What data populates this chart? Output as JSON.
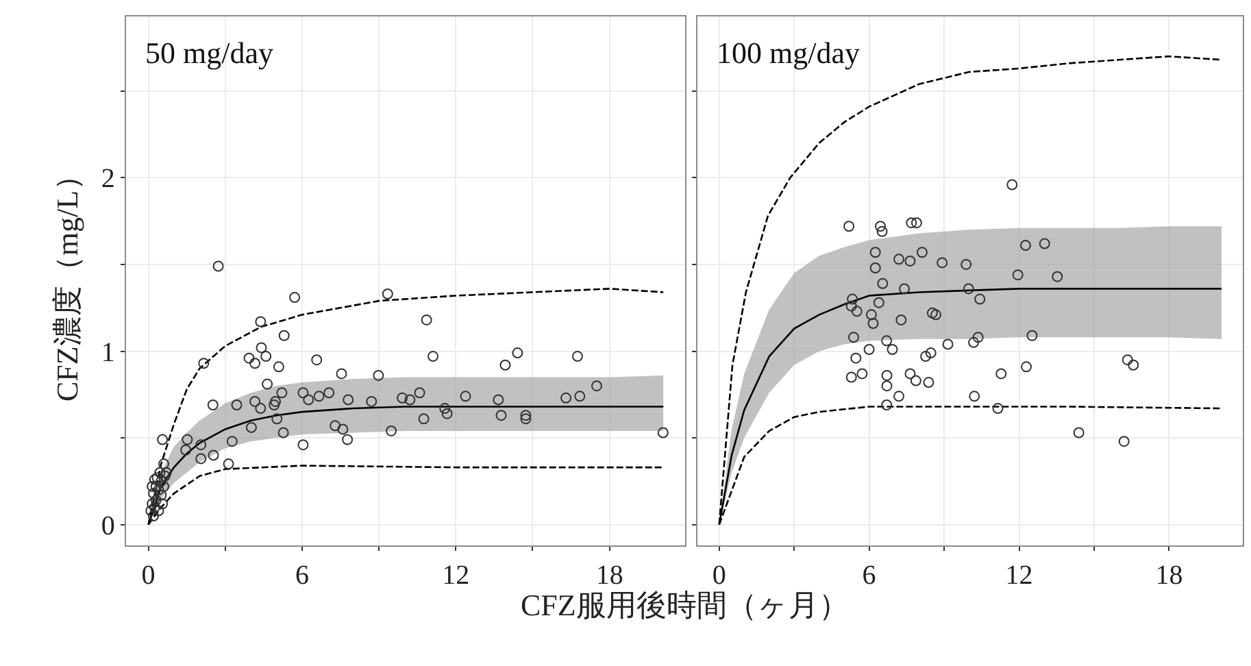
{
  "chart_data": [
    {
      "type": "scatter",
      "ylabel": "CFZ濃度（mg/L）",
      "xlabel": "CFZ服用後時間（ヶ月）",
      "annotations": [
        "50 mg/day"
      ],
      "xlim": [
        -0.87,
        20.95
      ],
      "xticks": [
        0,
        {
          "value": 3,
          "label": null
        },
        6,
        {
          "value": 9,
          "label": null
        },
        12,
        {
          "value": 15,
          "label": null
        },
        18
      ],
      "ylim": [
        -0.12,
        2.93
      ],
      "yticks": [
        0,
        {
          "value": 0.5,
          "label": null
        },
        1,
        {
          "value": 1.5,
          "label": null
        },
        2,
        {
          "value": 2.5,
          "label": null
        }
      ],
      "grid": true,
      "series": [
        {
          "type": "line",
          "color": "#000000",
          "line_style": "solid",
          "x": [
            0,
            0.5,
            1,
            1.5,
            2,
            3,
            4,
            5,
            6,
            8,
            10,
            12,
            14,
            16,
            18,
            20.1
          ],
          "values": [
            0,
            0.22,
            0.33,
            0.41,
            0.47,
            0.55,
            0.6,
            0.63,
            0.65,
            0.67,
            0.68,
            0.68,
            0.68,
            0.68,
            0.68,
            0.68
          ],
          "lower": [
            0,
            0.15,
            0.24,
            0.3,
            0.36,
            0.44,
            0.48,
            0.5,
            0.52,
            0.53,
            0.54,
            0.54,
            0.54,
            0.54,
            0.54,
            0.54
          ],
          "upper": [
            0,
            0.3,
            0.45,
            0.53,
            0.6,
            0.7,
            0.76,
            0.8,
            0.82,
            0.84,
            0.85,
            0.85,
            0.85,
            0.85,
            0.85,
            0.86
          ]
        },
        {
          "type": "line",
          "color": "#000000",
          "line_style": "dashed",
          "x": [
            0,
            0.5,
            1,
            1.5,
            2,
            3,
            4.4,
            6,
            9,
            12,
            15,
            18,
            20.1
          ],
          "values": [
            0,
            0.35,
            0.58,
            0.78,
            0.9,
            1.03,
            1.14,
            1.21,
            1.29,
            1.32,
            1.34,
            1.36,
            1.34
          ]
        },
        {
          "type": "line",
          "color": "#000000",
          "line_style": "dashed",
          "x": [
            0,
            0.5,
            1,
            2,
            3,
            6,
            12,
            20.1
          ],
          "values": [
            0,
            0.1,
            0.18,
            0.28,
            0.32,
            0.34,
            0.33,
            0.33
          ]
        },
        {
          "color": "#333333",
          "marker": "circle",
          "x": [
            2.73,
            5.71,
            9.34,
            4.38,
            10.86,
            5.3,
            2.16,
            3.93,
            4.16,
            4.41,
            4.59,
            5.09,
            6.57,
            11.11,
            13.93,
            14.41,
            16.75,
            7.54,
            8.98,
            4.64,
            17.5,
            2.52,
            3.45,
            4.16,
            4.38,
            4.91,
            4.96,
            5.21,
            6.04,
            6.25,
            6.66,
            7.05,
            7.8,
            8.71,
            9.91,
            10.21,
            10.59,
            12.38,
            13.66,
            16.3,
            16.84,
            11.57,
            11.66,
            13.77,
            14.73,
            14.73,
            10.75,
            5.02,
            4.02,
            5.27,
            7.29,
            7.59,
            7.77,
            9.48,
            20.09,
            6.04,
            3.27,
            1.52,
            1.46,
            2.05,
            2.05,
            2.54,
            3.13,
            0.55,
            0.1,
            0.15,
            0.2,
            0.2,
            0.25,
            0.3,
            0.3,
            0.35,
            0.4,
            0.4,
            0.45,
            0.5,
            0.5,
            0.55,
            0.6,
            0.6,
            0.65,
            0.7,
            0.15,
            0.25
          ],
          "values": [
            1.49,
            1.31,
            1.33,
            1.17,
            1.18,
            1.09,
            0.93,
            0.96,
            0.93,
            1.02,
            0.97,
            0.91,
            0.95,
            0.97,
            0.92,
            0.99,
            0.97,
            0.87,
            0.86,
            0.81,
            0.8,
            0.69,
            0.69,
            0.71,
            0.67,
            0.69,
            0.71,
            0.76,
            0.76,
            0.72,
            0.74,
            0.76,
            0.72,
            0.71,
            0.73,
            0.72,
            0.76,
            0.74,
            0.72,
            0.73,
            0.74,
            0.67,
            0.64,
            0.63,
            0.63,
            0.61,
            0.61,
            0.61,
            0.56,
            0.53,
            0.57,
            0.55,
            0.49,
            0.54,
            0.53,
            0.46,
            0.48,
            0.49,
            0.43,
            0.46,
            0.38,
            0.4,
            0.35,
            0.49,
            0.08,
            0.12,
            0.05,
            0.18,
            0.1,
            0.22,
            0.14,
            0.27,
            0.08,
            0.2,
            0.3,
            0.17,
            0.25,
            0.12,
            0.35,
            0.22,
            0.28,
            0.3,
            0.22,
            0.26
          ]
        }
      ]
    },
    {
      "type": "scatter",
      "annotations": [
        "100 mg/day"
      ],
      "tick_labels": "x",
      "xlim": [
        -0.87,
        20.95
      ],
      "xticks": [
        0,
        {
          "value": 3,
          "label": null
        },
        6,
        {
          "value": 9,
          "label": null
        },
        12,
        {
          "value": 15,
          "label": null
        },
        18
      ],
      "ylim": [
        -0.12,
        2.93
      ],
      "yticks": [
        0,
        {
          "value": 0.5,
          "label": null
        },
        1,
        {
          "value": 1.5,
          "label": null
        },
        2,
        {
          "value": 2.5,
          "label": null
        }
      ],
      "grid": true,
      "series": [
        {
          "type": "line",
          "color": "#000000",
          "line_style": "solid",
          "x": [
            0,
            0.5,
            1,
            2,
            3,
            4,
            5,
            6,
            8,
            10,
            12,
            14,
            16,
            18,
            20.1
          ],
          "values": [
            0,
            0.4,
            0.66,
            0.97,
            1.13,
            1.21,
            1.27,
            1.32,
            1.34,
            1.35,
            1.36,
            1.36,
            1.36,
            1.36,
            1.36
          ],
          "lower": [
            0,
            0.3,
            0.5,
            0.76,
            0.92,
            1.0,
            1.04,
            1.06,
            1.07,
            1.07,
            1.08,
            1.08,
            1.08,
            1.08,
            1.07
          ],
          "upper": [
            0,
            0.55,
            0.87,
            1.24,
            1.45,
            1.55,
            1.6,
            1.64,
            1.68,
            1.7,
            1.71,
            1.71,
            1.71,
            1.72,
            1.72
          ]
        },
        {
          "type": "line",
          "color": "#000000",
          "line_style": "dashed",
          "x": [
            0,
            0.53,
            1.07,
            1.95,
            2.84,
            4,
            5,
            6,
            8,
            10,
            12,
            14,
            16,
            18,
            20.1
          ],
          "values": [
            0,
            0.92,
            1.34,
            1.78,
            2.0,
            2.2,
            2.32,
            2.41,
            2.54,
            2.61,
            2.63,
            2.66,
            2.68,
            2.7,
            2.68
          ]
        },
        {
          "type": "line",
          "color": "#000000",
          "line_style": "dashed",
          "x": [
            0,
            1,
            2,
            3,
            4,
            6,
            10,
            14,
            20.1
          ],
          "values": [
            0,
            0.39,
            0.54,
            0.62,
            0.65,
            0.68,
            0.68,
            0.68,
            0.67
          ]
        },
        {
          "color": "#333333",
          "marker": "circle",
          "x": [
            11.72,
            5.19,
            6.45,
            6.52,
            7.69,
            7.9,
            12.26,
            13.02,
            6.25,
            8.12,
            7.19,
            7.64,
            8.92,
            9.88,
            6.25,
            11.95,
            13.53,
            6.54,
            7.41,
            9.98,
            5.33,
            10.43,
            5.29,
            5.51,
            6.39,
            6.09,
            6.16,
            7.28,
            8.53,
            8.67,
            5.38,
            6.7,
            6.93,
            6.0,
            9.15,
            10.18,
            10.36,
            12.52,
            5.47,
            8.26,
            8.47,
            12.29,
            16.34,
            16.57,
            5.29,
            5.72,
            6.71,
            6.71,
            7.64,
            7.87,
            8.38,
            11.28,
            7.19,
            10.21,
            6.7,
            11.15,
            14.39,
            16.2
          ],
          "values": [
            1.96,
            1.72,
            1.72,
            1.69,
            1.74,
            1.74,
            1.61,
            1.62,
            1.57,
            1.57,
            1.53,
            1.52,
            1.51,
            1.5,
            1.48,
            1.44,
            1.43,
            1.39,
            1.36,
            1.36,
            1.3,
            1.3,
            1.26,
            1.23,
            1.28,
            1.21,
            1.16,
            1.18,
            1.22,
            1.21,
            1.08,
            1.06,
            1.01,
            1.01,
            1.04,
            1.05,
            1.08,
            1.09,
            0.96,
            0.97,
            0.99,
            0.91,
            0.95,
            0.92,
            0.85,
            0.87,
            0.86,
            0.8,
            0.87,
            0.83,
            0.82,
            0.87,
            0.74,
            0.74,
            0.69,
            0.67,
            0.53,
            0.48
          ]
        }
      ]
    }
  ]
}
